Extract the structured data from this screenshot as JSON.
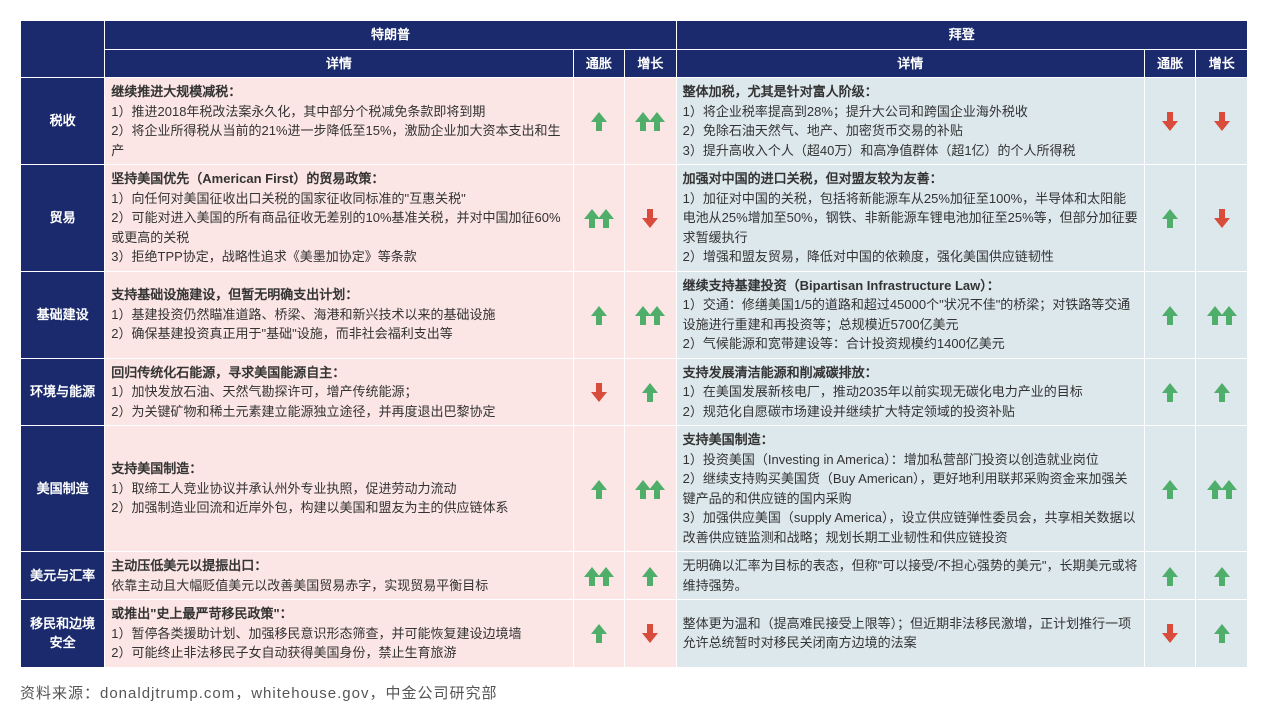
{
  "colors": {
    "navy": "#1a2a6c",
    "trump_bg": "#fbe5e5",
    "biden_bg": "#dde8ed",
    "up_arrow": "#4fae6a",
    "down_arrow": "#d94b3a"
  },
  "header": {
    "trump": "特朗普",
    "biden": "拜登",
    "details": "详情",
    "inflation": "通胀",
    "growth": "增长"
  },
  "rows": [
    {
      "category": "税收",
      "trump": {
        "title": "继续推进大规模减税：",
        "lines": [
          "1）推进2018年税改法案永久化，其中部分个税减免条款即将到期",
          "2）将企业所得税从当前的21%进一步降低至15%，激励企业加大资本支出和生产"
        ],
        "inflation": "up1",
        "growth": "up2"
      },
      "biden": {
        "title": "整体加税，尤其是针对富人阶级：",
        "lines": [
          "1）将企业税率提高到28%；提升大公司和跨国企业海外税收",
          "2）免除石油天然气、地产、加密货币交易的补贴",
          "3）提升高收入个人（超40万）和高净值群体（超1亿）的个人所得税"
        ],
        "inflation": "down1",
        "growth": "down1"
      }
    },
    {
      "category": "贸易",
      "trump": {
        "title": "坚持美国优先（American First）的贸易政策：",
        "lines": [
          "1）向任何对美国征收出口关税的国家征收同标准的\"互惠关税\"",
          "2）可能对进入美国的所有商品征收无差别的10%基准关税，并对中国加征60%或更高的关税",
          "3）拒绝TPP协定，战略性追求《美墨加协定》等条款"
        ],
        "inflation": "up2",
        "growth": "down1"
      },
      "biden": {
        "title": "加强对中国的进口关税，但对盟友较为友善：",
        "lines": [
          "1）加征对中国的关税，包括将新能源车从25%加征至100%，半导体和太阳能电池从25%增加至50%，钢铁、非新能源车锂电池加征至25%等，但部分加征要求暂缓执行",
          "2）增强和盟友贸易，降低对中国的依赖度，强化美国供应链韧性"
        ],
        "inflation": "up1",
        "growth": "down1"
      }
    },
    {
      "category": "基础建设",
      "trump": {
        "title": "支持基础设施建设，但暂无明确支出计划：",
        "lines": [
          "1）基建投资仍然瞄准道路、桥梁、海港和新兴技术以来的基础设施",
          "2）确保基建投资真正用于\"基础\"设施，而非社会福利支出等"
        ],
        "inflation": "up1",
        "growth": "up2"
      },
      "biden": {
        "title": "继续支持基建投资（Bipartisan Infrastructure Law）：",
        "lines": [
          "1）交通：修缮美国1/5的道路和超过45000个\"状况不佳\"的桥梁；对铁路等交通设施进行重建和再投资等；总规模近5700亿美元",
          "2）气候能源和宽带建设等：合计投资规模约1400亿美元"
        ],
        "inflation": "up1",
        "growth": "up2"
      }
    },
    {
      "category": "环境与能源",
      "trump": {
        "title": "回归传统化石能源，寻求美国能源自主：",
        "lines": [
          "1）加快发放石油、天然气勘探许可，增产传统能源；",
          "2）为关键矿物和稀土元素建立能源独立途径，并再度退出巴黎协定"
        ],
        "inflation": "down1",
        "growth": "up1"
      },
      "biden": {
        "title": "支持发展清洁能源和削减碳排放：",
        "lines": [
          "1）在美国发展新核电厂，推动2035年以前实现无碳化电力产业的目标",
          "2）规范化自愿碳市场建设并继续扩大特定领域的投资补贴"
        ],
        "inflation": "up1",
        "growth": "up1"
      }
    },
    {
      "category": "美国制造",
      "trump": {
        "title": "支持美国制造：",
        "lines": [
          "1）取缔工人竞业协议并承认州外专业执照，促进劳动力流动",
          "2）加强制造业回流和近岸外包，构建以美国和盟友为主的供应链体系"
        ],
        "inflation": "up1",
        "growth": "up2"
      },
      "biden": {
        "title": "支持美国制造：",
        "lines": [
          "1）投资美国（Investing in America）：增加私营部门投资以创造就业岗位",
          "2）继续支持购买美国货（Buy American），更好地利用联邦采购资金来加强关键产品的和供应链的国内采购",
          "3）加强供应美国（supply America），设立供应链弹性委员会，共享相关数据以改善供应链监测和战略；规划长期工业韧性和供应链投资"
        ],
        "inflation": "up1",
        "growth": "up2"
      }
    },
    {
      "category": "美元与汇率",
      "trump": {
        "title": "主动压低美元以提振出口：",
        "lines": [
          "依靠主动且大幅贬值美元以改善美国贸易赤字，实现贸易平衡目标"
        ],
        "inflation": "up2",
        "growth": "up1"
      },
      "biden": {
        "title": "",
        "lines": [
          "无明确以汇率为目标的表态，但称\"可以接受/不担心强势的美元\"，长期美元或将维持强势。"
        ],
        "inflation": "up1",
        "growth": "up1"
      }
    },
    {
      "category": "移民和边境安全",
      "trump": {
        "title": "或推出\"史上最严苛移民政策\"：",
        "lines": [
          "1）暂停各类援助计划、加强移民意识形态筛查，并可能恢复建设边境墙",
          "2）可能终止非法移民子女自动获得美国身份，禁止生育旅游"
        ],
        "inflation": "up1",
        "growth": "down1"
      },
      "biden": {
        "title": "",
        "lines": [
          "整体更为温和（提高难民接受上限等）；但近期非法移民激增，正计划推行一项允许总统暂时对移民关闭南方边境的法案"
        ],
        "inflation": "down1",
        "growth": "up1"
      }
    }
  ],
  "footnote": "资料来源：donaldjtrump.com，whitehouse.gov，中金公司研究部"
}
